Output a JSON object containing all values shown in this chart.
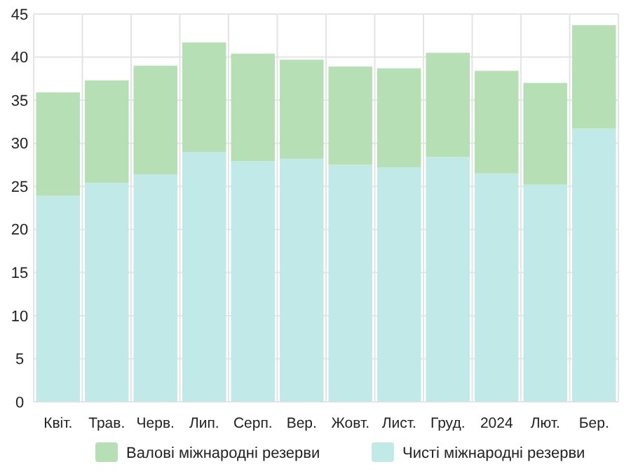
{
  "chart_data": {
    "type": "bar",
    "stacked": true,
    "categories": [
      "Квіт.",
      "Трав.",
      "Черв.",
      "Лип.",
      "Серп.",
      "Вер.",
      "Жовт.",
      "Лист.",
      "Груд.",
      "2024",
      "Лют.",
      "Бер."
    ],
    "series": [
      {
        "name": "Чисті міжнародні резерви",
        "color": "#c0e9e8",
        "values": [
          23.9,
          25.4,
          26.4,
          29.0,
          27.9,
          28.2,
          27.5,
          27.2,
          28.4,
          26.5,
          25.2,
          31.7
        ]
      },
      {
        "name": "Валові міжнародні резерви",
        "color": "#b6dfb6",
        "values": [
          12.0,
          11.9,
          12.6,
          12.7,
          12.5,
          11.5,
          11.4,
          11.5,
          12.1,
          11.9,
          11.8,
          12.0
        ]
      }
    ],
    "ylim": [
      0,
      45
    ],
    "yticks": [
      0,
      5,
      10,
      15,
      20,
      25,
      30,
      35,
      40,
      45
    ],
    "grid": true,
    "legend": "bottom"
  }
}
